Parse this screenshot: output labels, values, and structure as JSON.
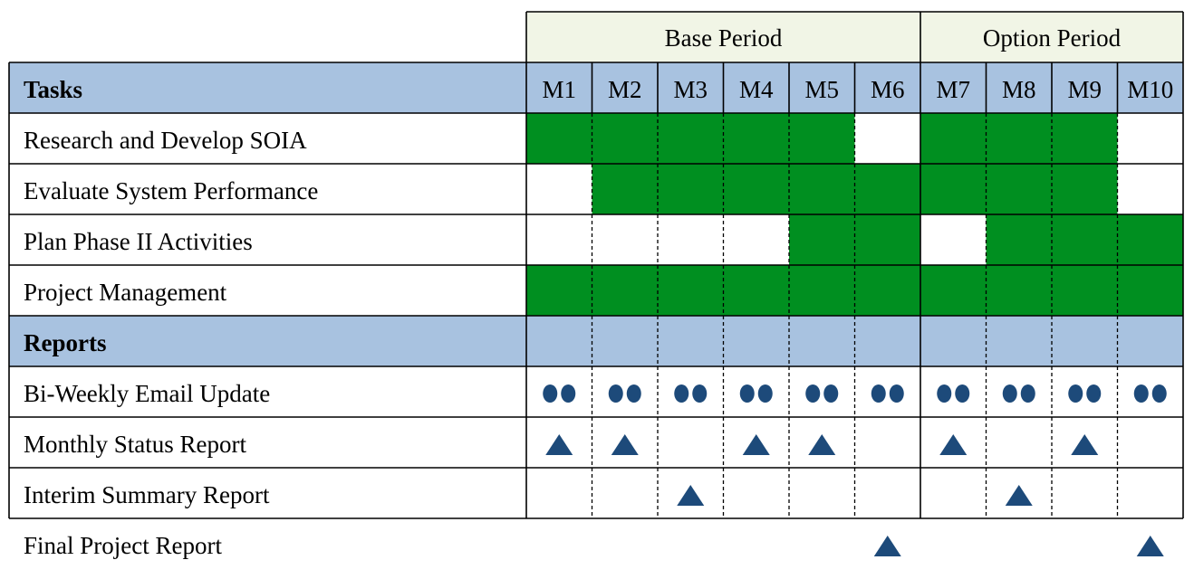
{
  "header": {
    "periods": [
      {
        "label": "Base Period",
        "months": 6
      },
      {
        "label": "Option Period",
        "months": 4
      }
    ],
    "tasks_heading": "Tasks",
    "reports_heading": "Reports",
    "months": [
      "M1",
      "M2",
      "M3",
      "M4",
      "M5",
      "M6",
      "M7",
      "M8",
      "M9",
      "M10"
    ]
  },
  "colors": {
    "header_blue": "#a8c2e0",
    "period_fill": "#f1f5e6",
    "active_green": "#008f20",
    "marker_navy": "#1d4a7a",
    "grid_line": "#000000"
  },
  "chart_data": {
    "type": "table",
    "tasks": [
      {
        "name": "Research and Develop SOIA",
        "active": [
          1,
          1,
          1,
          1,
          1,
          0,
          1,
          1,
          1,
          0
        ]
      },
      {
        "name": "Evaluate System Performance",
        "active": [
          0,
          1,
          1,
          1,
          1,
          1,
          1,
          1,
          1,
          0
        ]
      },
      {
        "name": "Plan Phase II Activities",
        "active": [
          0,
          0,
          0,
          0,
          1,
          1,
          0,
          1,
          1,
          1
        ]
      },
      {
        "name": "Project Management",
        "active": [
          1,
          1,
          1,
          1,
          1,
          1,
          1,
          1,
          1,
          1
        ]
      }
    ],
    "reports": [
      {
        "name": "Bi-Weekly Email Update",
        "marker": "double-dot",
        "months": [
          1,
          1,
          1,
          1,
          1,
          1,
          1,
          1,
          1,
          1
        ]
      },
      {
        "name": "Monthly Status Report",
        "marker": "triangle",
        "months": [
          1,
          1,
          0,
          1,
          1,
          0,
          1,
          0,
          1,
          0
        ]
      },
      {
        "name": "Interim Summary Report",
        "marker": "triangle",
        "months": [
          0,
          0,
          1,
          0,
          0,
          0,
          0,
          1,
          0,
          0
        ]
      },
      {
        "name": "Final Project Report",
        "marker": "triangle",
        "months": [
          0,
          0,
          0,
          0,
          0,
          1,
          0,
          0,
          0,
          1
        ]
      }
    ]
  }
}
